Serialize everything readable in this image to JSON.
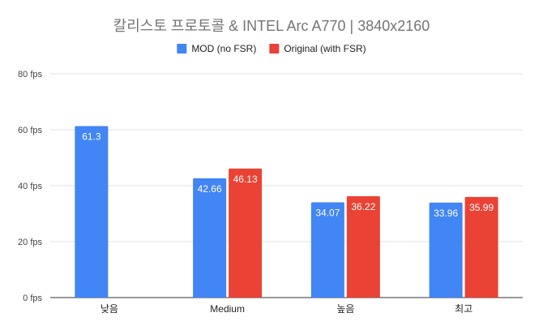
{
  "chart_data": {
    "type": "bar",
    "title": "칼리스토 프로토콜 & INTEL Arc A770 | 3840x2160",
    "categories": [
      "낮음",
      "Medium",
      "높음",
      "최고"
    ],
    "series": [
      {
        "name": "MOD (no FSR)",
        "color": "#4285f4",
        "values": [
          61.3,
          42.66,
          34.07,
          33.96
        ]
      },
      {
        "name": "Original (with FSR)",
        "color": "#ea4335",
        "values": [
          null,
          46.13,
          36.22,
          35.99
        ]
      }
    ],
    "ylim": [
      0,
      80
    ],
    "yticks": [
      0,
      20,
      40,
      60,
      80
    ],
    "ytick_suffix": " fps",
    "grid": true,
    "legend_position": "top"
  }
}
